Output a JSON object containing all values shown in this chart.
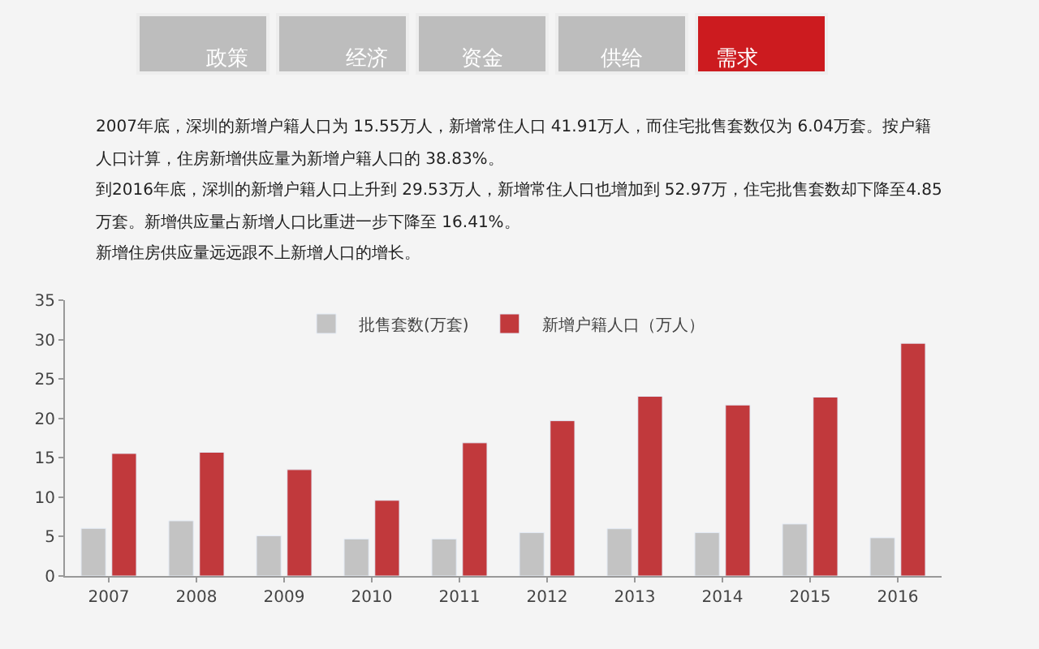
{
  "chart_data": {
    "type": "bar",
    "categories": [
      "2007",
      "2008",
      "2009",
      "2010",
      "2011",
      "2012",
      "2013",
      "2014",
      "2015",
      "2016"
    ],
    "series": [
      {
        "name": "批售套数(万套)",
        "color": "#c3c3c3",
        "values": [
          6.04,
          7.0,
          5.1,
          4.7,
          4.7,
          5.5,
          6.0,
          5.5,
          6.6,
          4.85
        ]
      },
      {
        "name": "新增户籍人口（万人）",
        "color": "#c1393c",
        "values": [
          15.55,
          15.7,
          13.5,
          9.6,
          16.9,
          19.7,
          22.8,
          21.7,
          22.7,
          29.53
        ]
      }
    ],
    "ylim": [
      0,
      35
    ],
    "yticks": [
      0,
      5,
      10,
      15,
      20,
      25,
      30,
      35
    ],
    "grid": false,
    "legend": "top",
    "annotations": [
      "政策",
      "经济",
      "资金",
      "供给",
      "需求",
      "2007年底，深圳的新增户籍人口为 15.55万人，新增常住人口 41.91万人，而住宅批售套数仅为 6.04万套。按户籍",
      "人口计算，住房新增供应量为新增户籍人口的 38.83%。",
      "到2016年底，深圳的新增户籍人口上升到 29.53万人，新增常住人口也增加到 52.97万，住宅批售套数却下降至4.85",
      "万套。新增供应量占新增人口比重进一步下降至 16.41%。",
      "新增住房供应量远远跟不上新增人口的增长。"
    ]
  }
}
